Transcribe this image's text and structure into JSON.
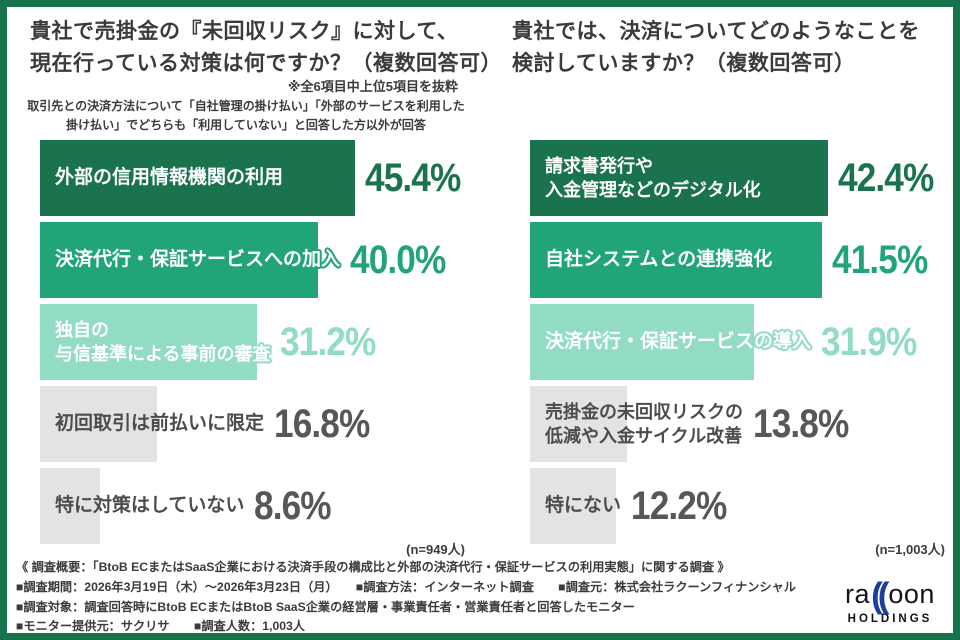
{
  "palette": {
    "frame_border": "#15724d",
    "dark_green": "#1a734d",
    "mid_green": "#21a478",
    "light_green": "#92dcc1",
    "gray_bar": "#e3e3e3",
    "text_dark": "#3b3b3b",
    "pct_gray": "#575757",
    "label_gray": "#4c4c4c",
    "label_white": "#ffffff",
    "logo_blue": "#1d3e9c",
    "logo_black": "#15151e"
  },
  "left_panel": {
    "title_lines": [
      "貴社で売掛金の『未回収リスク』に対して、",
      "現在行っている対策は何ですか？（複数回答可）"
    ],
    "note_excerpt": "※全6項目中上位5項目を抜粋",
    "note_filter_lines": [
      "取引先との決済方法について「自社管理の掛け払い」「外部のサービスを利用した",
      "掛け払い」でどちらも「利用していない」と回答した方以外が回答"
    ],
    "n_label": "(n=949人)",
    "bars": [
      {
        "label_lines": [
          "外部の信用情報機関の利用"
        ],
        "value": 45.4,
        "pct_label": "45.4%",
        "tone": "dark"
      },
      {
        "label_lines": [
          "決済代行・保証サービスへの加入"
        ],
        "value": 40.0,
        "pct_label": "40.0%",
        "tone": "mid"
      },
      {
        "label_lines": [
          "独自の",
          "与信基準による事前の審査"
        ],
        "value": 31.2,
        "pct_label": "31.2%",
        "tone": "light"
      },
      {
        "label_lines": [
          "初回取引は前払いに限定"
        ],
        "value": 16.8,
        "pct_label": "16.8%",
        "tone": "gray"
      },
      {
        "label_lines": [
          "特に対策はしていない"
        ],
        "value": 8.6,
        "pct_label": "8.6%",
        "tone": "gray"
      }
    ]
  },
  "right_panel": {
    "title_lines": [
      "貴社では、決済についてどのようなことを",
      "検討していますか？（複数回答可）"
    ],
    "n_label": "(n=1,003人)",
    "bars": [
      {
        "label_lines": [
          "請求書発行や",
          "入金管理などのデジタル化"
        ],
        "value": 42.4,
        "pct_label": "42.4%",
        "tone": "dark"
      },
      {
        "label_lines": [
          "自社システムとの連携強化"
        ],
        "value": 41.5,
        "pct_label": "41.5%",
        "tone": "mid"
      },
      {
        "label_lines": [
          "決済代行・保証サービスの導入"
        ],
        "value": 31.9,
        "pct_label": "31.9%",
        "tone": "light"
      },
      {
        "label_lines": [
          "売掛金の未回収リスクの",
          "低減や入金サイクル改善"
        ],
        "value": 13.8,
        "pct_label": "13.8%",
        "tone": "gray"
      },
      {
        "label_lines": [
          "特にない"
        ],
        "value": 12.2,
        "pct_label": "12.2%",
        "tone": "gray"
      }
    ]
  },
  "footer": {
    "lines": [
      "《 調査概要：「BtoB ECまたはSaaS企業における決済手段の構成比と外部の決済代行・保証サービスの利用実態」に関する調査 》",
      "■調査期間：2026年3月19日（木）～2026年3月23日（月）　　■調査方法：インターネット調査　　■調査元：株式会社ラクーンフィナンシャル",
      "■調査対象：調査回答時にBtoB ECまたはBtoB SaaS企業の経営層・事業責任者・営業責任者と回答したモニター",
      "■モニター提供元：サクリサ　　■調査人数：1,003人"
    ]
  },
  "logo": {
    "part1": "ra",
    "parens": "((",
    "part2": "oon",
    "holdings": "HOLDINGS"
  },
  "chart_data": [
    {
      "type": "bar",
      "orientation": "horizontal",
      "title": "貴社で売掛金の『未回収リスク』に対して、現在行っている対策は何ですか？（複数回答可）",
      "note": "※全6項目中上位5項目を抜粋",
      "filter_note": "取引先との決済方法について「自社管理の掛け払い」「外部のサービスを利用した掛け払い」でどちらも「利用していない」と回答した方以外が回答",
      "categories": [
        "外部の信用情報機関の利用",
        "決済代行・保証サービスへの加入",
        "独自の与信基準による事前の審査",
        "初回取引は前払いに限定",
        "特に対策はしていない"
      ],
      "values": [
        45.4,
        40.0,
        31.2,
        16.8,
        8.6
      ],
      "unit": "%",
      "sample": "n=949人",
      "xlim": [
        0,
        50
      ],
      "grid": false,
      "legend": false
    },
    {
      "type": "bar",
      "orientation": "horizontal",
      "title": "貴社では、決済についてどのようなことを検討していますか？（複数回答可）",
      "categories": [
        "請求書発行や入金管理などのデジタル化",
        "自社システムとの連携強化",
        "決済代行・保証サービスの導入",
        "売掛金の未回収リスクの低減や入金サイクル改善",
        "特にない"
      ],
      "values": [
        42.4,
        41.5,
        31.9,
        13.8,
        12.2
      ],
      "unit": "%",
      "sample": "n=1,003人",
      "xlim": [
        0,
        50
      ],
      "grid": false,
      "legend": false
    }
  ]
}
